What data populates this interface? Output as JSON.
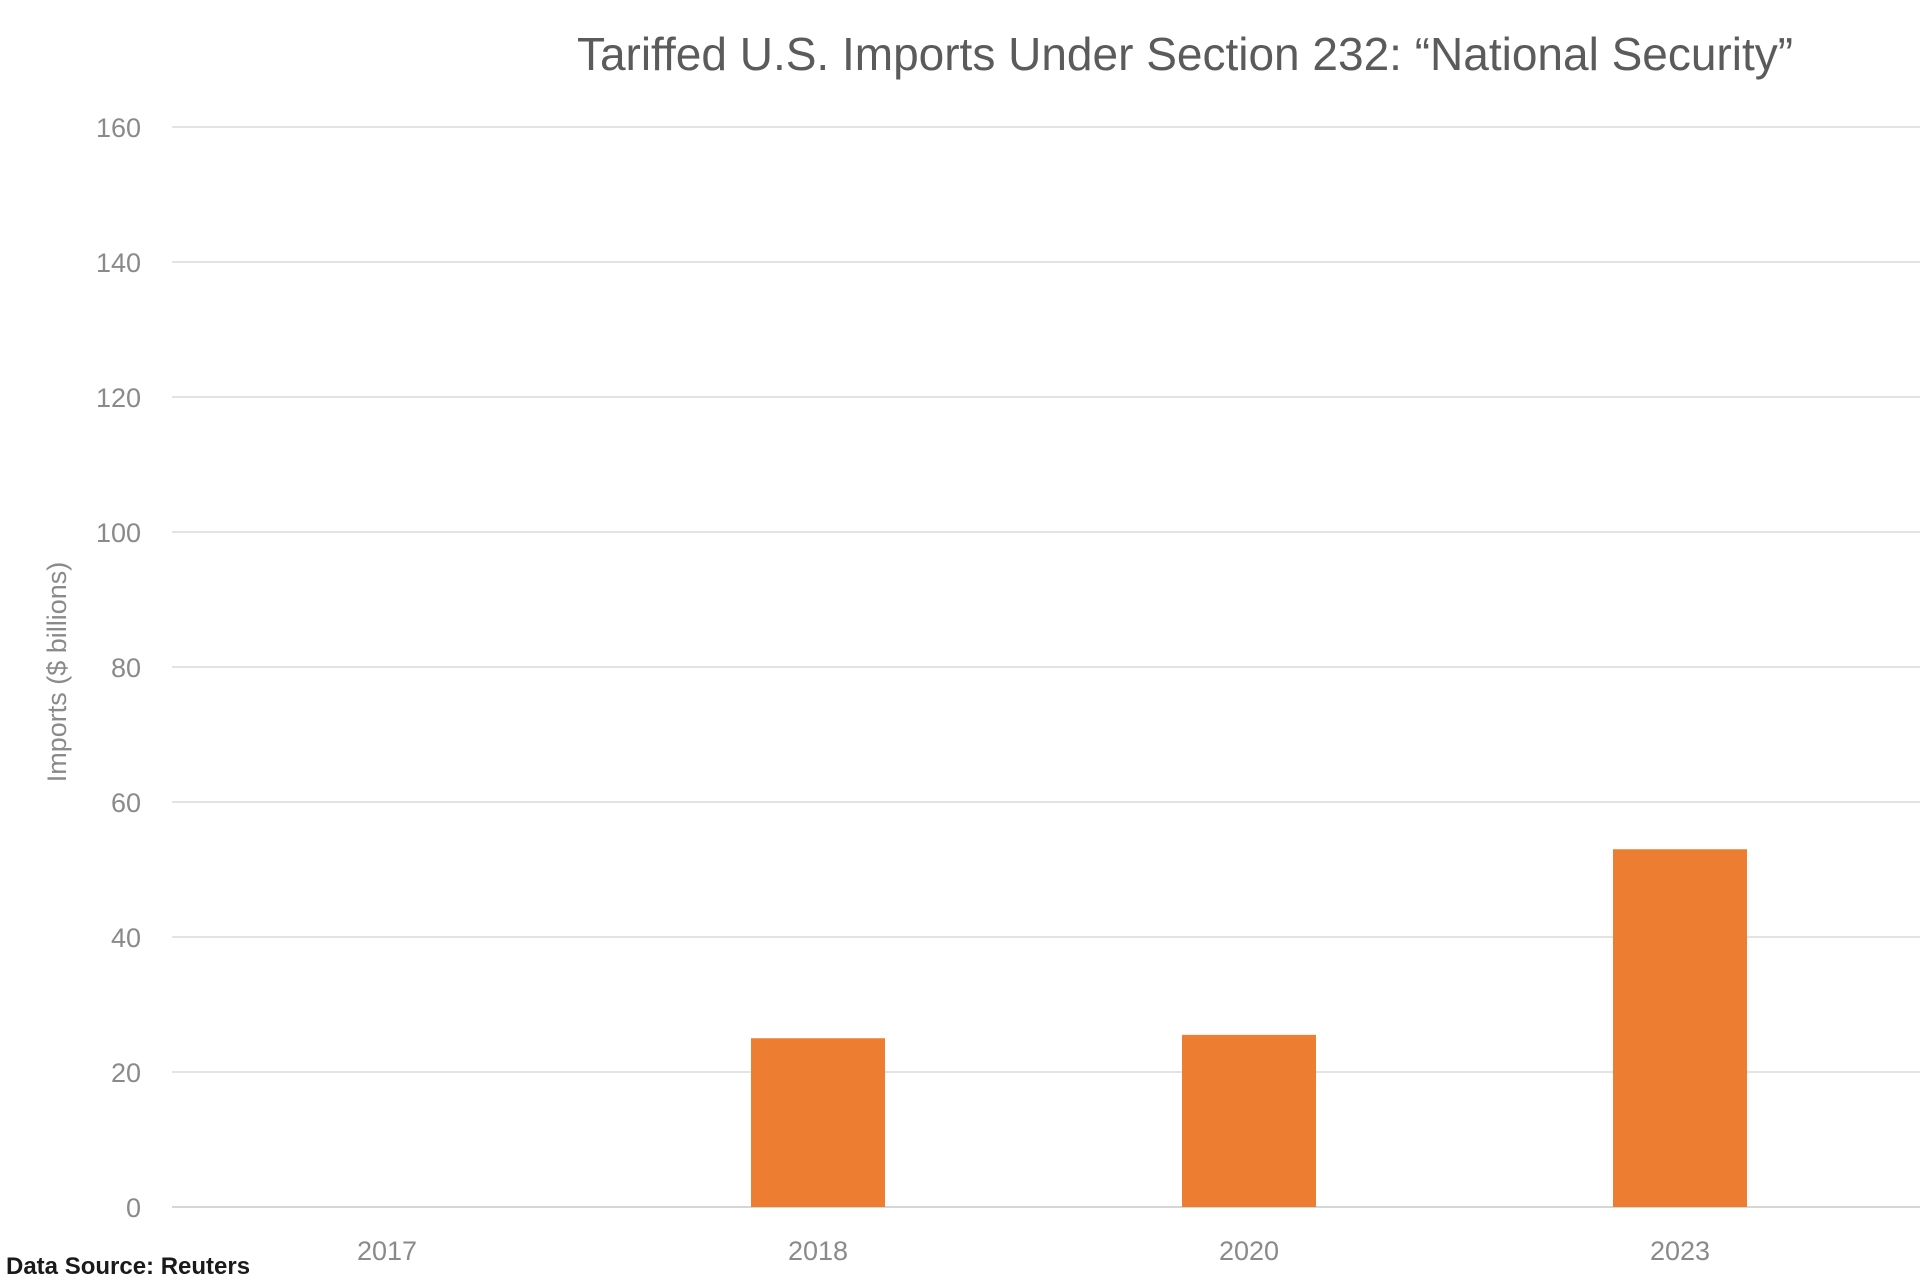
{
  "chart_data": {
    "type": "bar",
    "title": "Tariffed U.S. Imports Under Section 232: “National Security”",
    "ylabel": "Imports ($ billions)",
    "xlabel": "",
    "categories": [
      "2017",
      "2018",
      "2020",
      "2023"
    ],
    "values": [
      0,
      25,
      25.5,
      53
    ],
    "ylim": [
      0,
      160
    ],
    "yticks": [
      "0",
      "20",
      "40",
      "60",
      "80",
      "100",
      "120",
      "140",
      "160"
    ],
    "bar_color": "#ed7d31",
    "grid": true,
    "legend": "none"
  },
  "source_note": "Data Source: Reuters"
}
